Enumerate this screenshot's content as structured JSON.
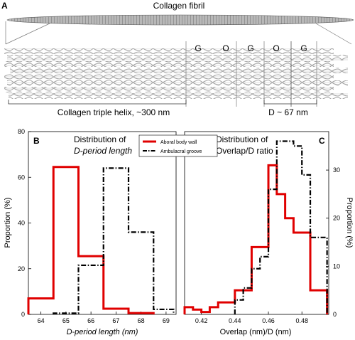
{
  "panelA": {
    "letter": "A",
    "fibril_title": "Collagen fibril",
    "band_labels": [
      "G",
      "O",
      "G",
      "O",
      "G"
    ],
    "helix_label": "Collagen triple helix, ~300 nm",
    "d_label": "D ~ 67 nm"
  },
  "legend": {
    "aboral": "Aboral body wall",
    "ambulacral": "Ambulacral groove"
  },
  "colors": {
    "aboral": "#e00000",
    "ambulacral": "#000000"
  },
  "chart_data": [
    {
      "type": "histogram-step",
      "panel": "B",
      "title_line1": "Distribution of",
      "title_line2": "D-period length",
      "xlabel": "D-period length (nm)",
      "ylabel": "Proportion (%)",
      "xlim": [
        63.5,
        69.4
      ],
      "ylim": [
        0,
        80
      ],
      "xticks": [
        64,
        65,
        66,
        67,
        68,
        69
      ],
      "yticks": [
        0,
        20,
        40,
        60,
        80
      ],
      "series": [
        {
          "key": "aboral",
          "edges": [
            63.5,
            64.5,
            65.5,
            66.5,
            67.5,
            68.5
          ],
          "values": [
            7,
            64.5,
            25.5,
            2.5,
            0.6
          ]
        },
        {
          "key": "ambulacral",
          "edges": [
            64.5,
            65.5,
            66.5,
            67.5,
            68.5,
            69.3
          ],
          "values": [
            0.5,
            21.5,
            64,
            36,
            2.2
          ]
        }
      ]
    },
    {
      "type": "histogram-step",
      "panel": "C",
      "title_line1": "Distribution of",
      "title_line2": "Overlap/D ratio",
      "xlabel": "Overlap (nm)/D (nm)",
      "ylabel": "Proportion (%)",
      "xlim": [
        0.41,
        0.496
      ],
      "ylim": [
        0,
        38
      ],
      "xticks": [
        0.42,
        0.44,
        0.46,
        0.48
      ],
      "yticks": [
        0,
        10,
        20,
        30
      ],
      "series": [
        {
          "key": "aboral",
          "edges": [
            0.41,
            0.415,
            0.42,
            0.425,
            0.43,
            0.435,
            0.44,
            0.445,
            0.45,
            0.455,
            0.46,
            0.465,
            0.47,
            0.475,
            0.48,
            0.485,
            0.49,
            0.495
          ],
          "values": [
            1.5,
            1,
            0.5,
            1.5,
            2.5,
            2.5,
            5,
            5,
            14,
            14,
            31,
            25,
            20,
            17,
            17,
            5,
            5
          ]
        },
        {
          "key": "ambulacral",
          "edges": [
            0.44,
            0.445,
            0.45,
            0.455,
            0.46,
            0.465,
            0.47,
            0.475,
            0.48,
            0.485,
            0.49,
            0.495
          ],
          "values": [
            3,
            5.5,
            9.5,
            12,
            26,
            36,
            36,
            35,
            29,
            16,
            16
          ]
        }
      ]
    }
  ]
}
